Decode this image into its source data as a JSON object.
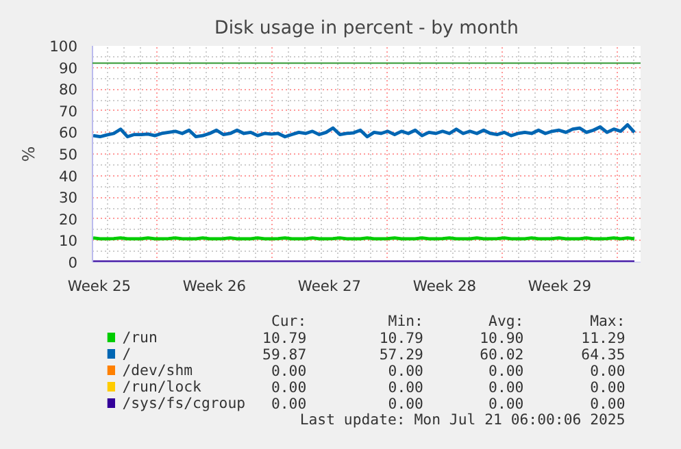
{
  "chart_data": {
    "type": "line",
    "title": "Disk usage in percent - by month",
    "ylabel": "%",
    "x": [
      "2025-06-17T23:00",
      "2025-06-18T09:00",
      "2025-06-18T19:00",
      "2025-06-19T05:00",
      "2025-06-19T15:00",
      "2025-06-20T01:00",
      "2025-06-20T11:00",
      "2025-06-20T21:00",
      "2025-06-21T07:00",
      "2025-06-21T17:00",
      "2025-06-22T03:00",
      "2025-06-22T13:00",
      "2025-06-22T23:00",
      "2025-06-23T09:00",
      "2025-06-23T19:00",
      "2025-06-24T05:00",
      "2025-06-24T15:00",
      "2025-06-25T01:00",
      "2025-06-25T11:00",
      "2025-06-25T21:00",
      "2025-06-26T07:00",
      "2025-06-26T17:00",
      "2025-06-27T03:00",
      "2025-06-27T13:00",
      "2025-06-27T23:00",
      "2025-06-28T09:00",
      "2025-06-28T19:00",
      "2025-06-29T05:00",
      "2025-06-29T15:00",
      "2025-06-30T01:00",
      "2025-06-30T11:00",
      "2025-06-30T21:00",
      "2025-07-01T07:00",
      "2025-07-01T17:00",
      "2025-07-02T03:00",
      "2025-07-02T13:00",
      "2025-07-02T23:00",
      "2025-07-03T09:00",
      "2025-07-03T19:00",
      "2025-07-04T05:00",
      "2025-07-04T15:00",
      "2025-07-05T01:00",
      "2025-07-05T11:00",
      "2025-07-05T21:00",
      "2025-07-06T07:00",
      "2025-07-06T17:00",
      "2025-07-07T03:00",
      "2025-07-07T13:00",
      "2025-07-07T23:00",
      "2025-07-08T09:00",
      "2025-07-08T19:00",
      "2025-07-09T05:00",
      "2025-07-09T15:00",
      "2025-07-10T01:00",
      "2025-07-10T11:00",
      "2025-07-10T21:00",
      "2025-07-11T07:00",
      "2025-07-11T17:00",
      "2025-07-12T03:00",
      "2025-07-12T13:00",
      "2025-07-12T23:00",
      "2025-07-13T09:00",
      "2025-07-13T19:00",
      "2025-07-14T05:00",
      "2025-07-14T15:00",
      "2025-07-15T01:00",
      "2025-07-15T11:00",
      "2025-07-15T21:00",
      "2025-07-16T07:00",
      "2025-07-16T17:00",
      "2025-07-17T03:00",
      "2025-07-17T13:00",
      "2025-07-17T23:00",
      "2025-07-18T09:00",
      "2025-07-18T19:00",
      "2025-07-19T05:00",
      "2025-07-19T15:00",
      "2025-07-20T01:00",
      "2025-07-20T11:00",
      "2025-07-20T21:00"
    ],
    "series": [
      {
        "name": "/run",
        "color": "#00cc00",
        "values": [
          11.2,
          10.8,
          10.8,
          10.9,
          11.2,
          10.8,
          10.8,
          10.8,
          11.2,
          10.8,
          10.8,
          10.9,
          11.2,
          10.8,
          10.8,
          10.8,
          11.2,
          10.8,
          10.8,
          10.9,
          11.2,
          10.8,
          10.8,
          10.8,
          11.2,
          10.8,
          10.8,
          10.9,
          11.2,
          10.8,
          10.8,
          10.8,
          11.2,
          10.8,
          10.8,
          10.9,
          11.2,
          10.8,
          10.8,
          10.8,
          11.2,
          10.8,
          10.8,
          10.9,
          11.2,
          10.8,
          10.8,
          10.8,
          11.2,
          10.8,
          10.8,
          10.9,
          11.2,
          10.8,
          10.8,
          10.8,
          11.2,
          10.8,
          10.8,
          10.9,
          11.2,
          10.8,
          10.8,
          10.8,
          11.2,
          10.8,
          10.8,
          10.9,
          11.2,
          10.8,
          10.8,
          10.8,
          11.2,
          10.8,
          10.8,
          10.9,
          11.2,
          10.8,
          11.2,
          10.8
        ]
      },
      {
        "name": "/",
        "color": "#0066b3",
        "values": [
          58.5,
          58,
          58.8,
          59.5,
          61.5,
          58,
          59,
          59,
          59.2,
          58.5,
          59.5,
          60,
          60.5,
          59.5,
          61,
          58,
          58.5,
          59.5,
          61,
          59,
          59.5,
          61,
          59.5,
          60,
          58.5,
          59.5,
          59.2,
          59.5,
          58,
          59,
          60,
          59.5,
          60.5,
          59,
          60,
          62,
          59,
          59.5,
          59.8,
          61,
          58,
          60,
          59.5,
          60.5,
          59,
          60.5,
          59.5,
          61,
          58.5,
          60,
          59.5,
          60.5,
          59.5,
          61.5,
          59.5,
          60.5,
          59.5,
          61,
          59.5,
          59,
          60,
          58.5,
          59.5,
          60,
          59.5,
          61,
          59.5,
          60.5,
          61,
          60,
          61.5,
          62,
          60,
          61,
          62.5,
          60,
          61.5,
          60.5,
          63.5,
          60
        ]
      },
      {
        "name": "/dev/shm",
        "color": "#ff8000",
        "values": [
          null,
          null,
          null,
          null,
          null,
          null,
          null,
          null,
          null,
          null,
          null,
          null,
          null,
          null,
          null,
          null,
          null,
          null,
          null,
          null,
          null,
          null,
          null,
          null,
          null,
          null,
          null,
          null,
          null,
          null,
          null,
          null,
          null,
          null,
          null,
          null,
          null,
          null,
          null,
          null,
          null,
          null,
          null,
          null,
          null,
          null,
          null,
          null,
          null,
          null,
          null,
          null,
          null,
          null,
          null,
          null,
          null,
          null,
          null,
          null,
          null,
          null,
          null,
          null,
          null,
          null,
          null,
          null,
          null,
          null,
          null,
          null,
          null,
          null,
          null,
          null,
          null,
          null,
          null,
          null
        ]
      },
      {
        "name": "/run/lock",
        "color": "#ffcc00",
        "values": [
          null,
          null,
          null,
          null,
          null,
          null,
          null,
          null,
          null,
          null,
          null,
          null,
          null,
          null,
          null,
          null,
          null,
          null,
          null,
          null,
          null,
          null,
          null,
          null,
          null,
          null,
          null,
          null,
          null,
          null,
          null,
          null,
          null,
          null,
          null,
          null,
          null,
          null,
          null,
          null,
          null,
          null,
          null,
          null,
          null,
          null,
          null,
          null,
          null,
          null,
          null,
          null,
          null,
          null,
          null,
          null,
          null,
          null,
          null,
          null,
          null,
          null,
          null,
          null,
          null,
          null,
          null,
          null,
          null,
          null,
          null,
          null,
          null,
          null,
          null,
          null,
          null,
          null,
          null,
          null
        ]
      },
      {
        "name": "/sys/fs/cgroup",
        "color": "#330099",
        "values": [
          0,
          0,
          0,
          0,
          0,
          0,
          0,
          0,
          0,
          0,
          0,
          0,
          0,
          0,
          0,
          0,
          0,
          0,
          0,
          0,
          0,
          0,
          0,
          0,
          0,
          0,
          0,
          0,
          0,
          0,
          0,
          0,
          0,
          0,
          0,
          0,
          0,
          0,
          0,
          0,
          0,
          0,
          0,
          0,
          0,
          0,
          0,
          0,
          0,
          0,
          0,
          0,
          0,
          0,
          0,
          0,
          0,
          0,
          0,
          0,
          0,
          0,
          0,
          0,
          0,
          0,
          0,
          0,
          0,
          0,
          0,
          0,
          0,
          0,
          0,
          0,
          0,
          0,
          0,
          0
        ]
      }
    ],
    "xlim": [
      "2025-06-17T22:00",
      "2025-07-21T06:00"
    ],
    "ylim": [
      0,
      100
    ],
    "xticks": [
      {
        "value": "2025-06-18T08:00",
        "label": "Week 25"
      },
      {
        "value": "2025-06-21T20:00",
        "label": null
      },
      {
        "value": "2025-06-25T08:00",
        "label": "Week 26"
      },
      {
        "value": "2025-06-28T20:00",
        "label": null
      },
      {
        "value": "2025-07-02T08:00",
        "label": "Week 27"
      },
      {
        "value": "2025-07-05T20:00",
        "label": null
      },
      {
        "value": "2025-07-09T08:00",
        "label": "Week 28"
      },
      {
        "value": "2025-07-12T20:00",
        "label": null
      },
      {
        "value": "2025-07-16T08:00",
        "label": "Week 29"
      },
      {
        "value": "2025-07-19T20:00",
        "label": null
      }
    ],
    "yticks": [
      0,
      10,
      20,
      30,
      40,
      50,
      60,
      70,
      80,
      90,
      100
    ],
    "grid": true,
    "legend": "bottom",
    "marker": "none",
    "line_style": "solid",
    "ref_lines": [
      {
        "axis": "y",
        "value": 92,
        "color": "#339933"
      }
    ],
    "annotations": [
      "Cur:",
      "Min:",
      "Avg:",
      "Max:",
      "10.79",
      "10.79",
      "10.90",
      "11.29",
      "59.87",
      "57.29",
      "60.02",
      "64.35",
      "0.00",
      "0.00",
      "0.00",
      "0.00",
      "0.00",
      "0.00",
      "0.00",
      "0.00",
      "0.00",
      "0.00",
      "0.00",
      "0.00",
      "Last update: Mon Jul 21 06:00:06 2025"
    ]
  }
}
